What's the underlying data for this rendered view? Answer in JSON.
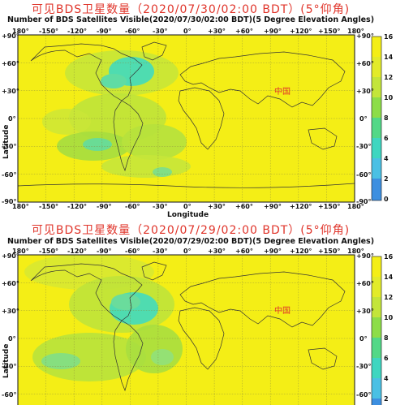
{
  "panels": [
    {
      "title_cn": "可见BDS卫星数量（2020/07/30/02:00 BDT）(5°仰角)",
      "title_en": "Number of BDS Satellites Visible(2020/07/30/02:00 BDT)(5 Degree Elevation Angles)",
      "x_ticks": [
        "180°",
        "-150°",
        "-120°",
        "-90°",
        "-60°",
        "-30°",
        "0°",
        "+30°",
        "+60°",
        "+90°",
        "+120°",
        "+150°",
        "180°"
      ],
      "y_ticks_left": [
        "+90°",
        "+60°",
        "+30°",
        "0°",
        "-30°",
        "-60°",
        "-90°"
      ],
      "y_ticks_right": [
        "+90°",
        "+60°",
        "+30°",
        "0°",
        "-30°",
        "-60°",
        "-90°"
      ],
      "xlabel": "Longitude",
      "ylabel": "Latitude",
      "region_label": "中国",
      "colorbar_ticks": [
        "16",
        "14",
        "12",
        "10",
        "8",
        "6",
        "4",
        "2",
        "0"
      ]
    },
    {
      "title_cn": "可见BDS卫星数量（2020/07/29/02:00 BDT）(5°仰角)",
      "title_en": "Number of BDS Satellites Visible(2020/07/29/02:00 BDT)(5 Degree Elevation Angles)",
      "x_ticks": [
        "180°",
        "-150°",
        "-120°",
        "-90°",
        "-60°",
        "-30°",
        "0°",
        "+30°",
        "+60°",
        "+90°",
        "+120°",
        "+150°",
        "180°"
      ],
      "y_ticks_left": [
        "+90°",
        "+60°",
        "+30°",
        "0°",
        "-30°",
        "-60°"
      ],
      "y_ticks_right": [
        "+90°",
        "+60°",
        "+30°",
        "0°",
        "-30°",
        "-60°"
      ],
      "ylabel": "Latitude",
      "region_label": "中国",
      "colorbar_ticks": [
        "16",
        "14",
        "12",
        "10",
        "8",
        "6",
        "4",
        "2"
      ]
    }
  ],
  "colors": {
    "map_yellow": "#f4ee16",
    "map_green": "#b8e23c",
    "map_cyan": "#4fdcb0",
    "title_red": "#e0352b"
  }
}
